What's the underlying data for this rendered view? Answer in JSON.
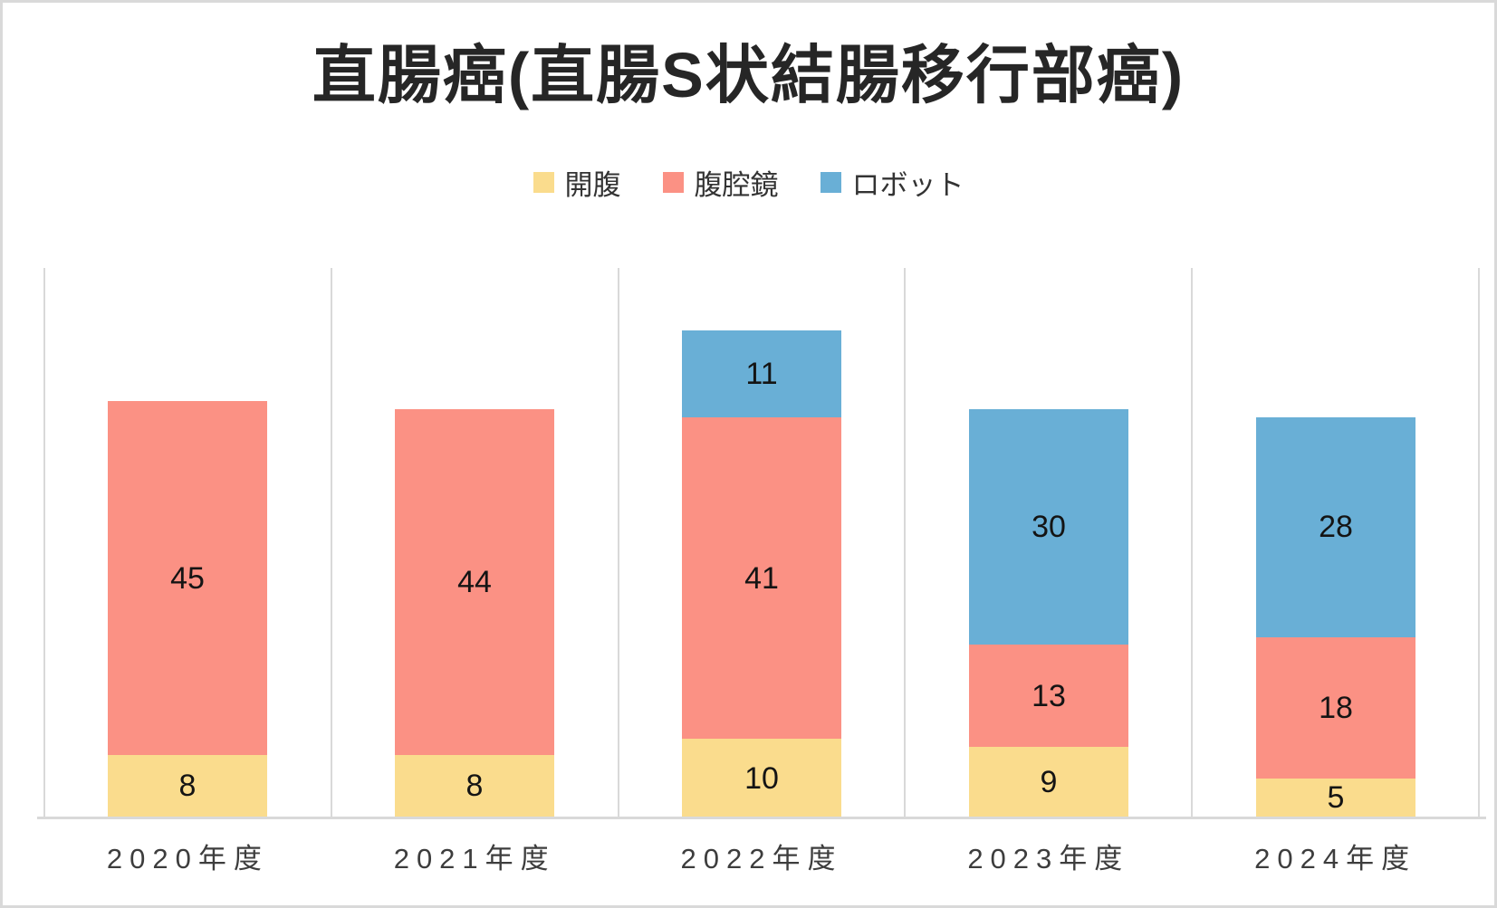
{
  "colors": {
    "background": "#FFFFFF",
    "canvas_border": "#D9D9D9",
    "grid": "#D9D9D9",
    "axis_line": "#D9D9D9",
    "title_text": "#262626",
    "legend_text": "#333333",
    "data_label_text": "#141414",
    "axis_label_text": "#3D3D3D"
  },
  "chart_data": {
    "type": "bar",
    "stacked": true,
    "title": "直腸癌(直腸S状結腸移行部癌)",
    "categories": [
      "2020年度",
      "2021年度",
      "2022年度",
      "2023年度",
      "2024年度"
    ],
    "series": [
      {
        "name": "開腹",
        "color": "#FADC8D",
        "values": [
          8,
          8,
          10,
          9,
          5
        ]
      },
      {
        "name": "腹腔鏡",
        "color": "#FB9184",
        "values": [
          45,
          44,
          41,
          13,
          18
        ]
      },
      {
        "name": "ロボット",
        "color": "#69AFD6",
        "values": [
          0,
          0,
          11,
          30,
          28
        ]
      }
    ],
    "ylim": [
      0,
      70
    ],
    "xlabel": "",
    "ylabel": "",
    "grid": "vertical category separators only",
    "legend_position": "top-center",
    "data_labels": "inside segments, zero values hidden"
  }
}
